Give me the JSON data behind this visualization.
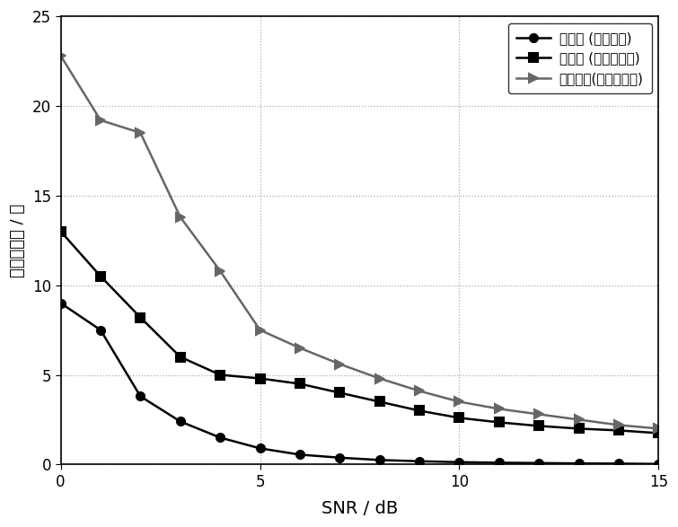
{
  "x": [
    0,
    1,
    2,
    3,
    4,
    5,
    6,
    7,
    8,
    9,
    10,
    11,
    12,
    13,
    14,
    15
  ],
  "series1_y": [
    9.0,
    7.5,
    3.8,
    2.4,
    1.5,
    0.9,
    0.55,
    0.38,
    0.25,
    0.18,
    0.13,
    0.1,
    0.08,
    0.06,
    0.05,
    0.03
  ],
  "series2_y": [
    13.0,
    10.5,
    8.2,
    6.0,
    5.0,
    4.8,
    4.5,
    4.0,
    3.5,
    3.0,
    2.6,
    2.35,
    2.15,
    2.0,
    1.9,
    1.75
  ],
  "series3_y": [
    22.8,
    19.2,
    18.5,
    13.8,
    10.8,
    7.5,
    6.5,
    5.6,
    4.8,
    4.1,
    3.5,
    3.1,
    2.8,
    2.5,
    2.2,
    2.0
  ],
  "series1_label": "本发明 (相干数据)",
  "series2_label": "本发明 (非相干数据)",
  "series3_label": "现有方法(非相干数据)",
  "xlabel": "SNR / dB",
  "ylabel": "朝向标准差 / 度",
  "xlim": [
    0,
    15
  ],
  "ylim": [
    0,
    25
  ],
  "yticks": [
    0,
    5,
    10,
    15,
    20,
    25
  ],
  "xticks": [
    0,
    5,
    10,
    15
  ],
  "grid_color": "#aaaaaa",
  "background_color": "#ffffff"
}
